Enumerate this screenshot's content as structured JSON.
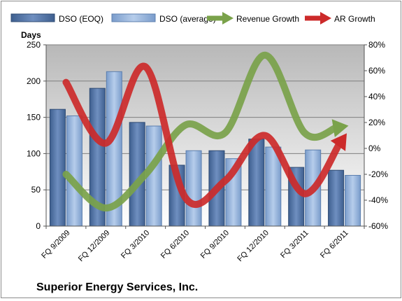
{
  "chart_data": {
    "type": "bar",
    "title": "Superior Energy Services, Inc.",
    "y_left_label": "Days",
    "y_left_lim": [
      0,
      250
    ],
    "y_left_ticks": [
      "0",
      "50",
      "100",
      "150",
      "200",
      "250"
    ],
    "y_right_lim": [
      -60,
      80
    ],
    "y_right_ticks": [
      "-60%",
      "-40%",
      "-20%",
      "0%",
      "20%",
      "40%",
      "60%",
      "80%"
    ],
    "categories": [
      "FQ 9/2009",
      "FQ 12/2009",
      "FQ 3/2010",
      "FQ 6/2010",
      "FQ 9/2010",
      "FQ 12/2010",
      "FQ 3/2011",
      "FQ 6/2011"
    ],
    "legend_position": "top",
    "grid": true,
    "series": [
      {
        "name": "DSO (EOQ)",
        "type": "bar",
        "axis": "left",
        "color": "#4a6fa5",
        "values": [
          161,
          190,
          143,
          84,
          104,
          120,
          81,
          77
        ]
      },
      {
        "name": "DSO (average)",
        "type": "bar",
        "axis": "left",
        "color": "#8fb0dc",
        "values": [
          152,
          213,
          138,
          104,
          93,
          109,
          105,
          70
        ]
      },
      {
        "name": "Revenue Growth",
        "type": "line",
        "axis": "right",
        "color": "#7aa24a",
        "values": [
          -20,
          -46,
          -20,
          18,
          12,
          72,
          12,
          17
        ]
      },
      {
        "name": "AR Growth",
        "type": "line",
        "axis": "right",
        "color": "#cc2a2a",
        "values": [
          51,
          4,
          63,
          -38,
          -25,
          10,
          -35,
          9
        ]
      }
    ]
  }
}
